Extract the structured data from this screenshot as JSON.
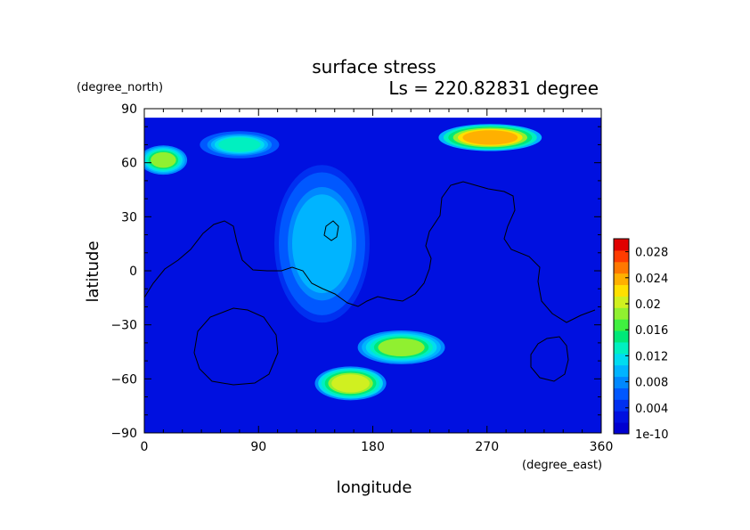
{
  "chart_data": {
    "type": "heatmap",
    "title": "surface stress",
    "subtitle": "Ls = 220.82831 degree",
    "xlabel": "longitude",
    "ylabel": "latitude",
    "x_unit": "(degree_east)",
    "y_unit": "(degree_north)",
    "xlim": [
      0,
      360
    ],
    "ylim": [
      -90,
      90
    ],
    "x_ticks": [
      "0",
      "90",
      "180",
      "270",
      "360"
    ],
    "y_ticks": [
      "90",
      "60",
      "30",
      "0",
      "−30",
      "−60",
      "−90"
    ],
    "x_tick_values": [
      0,
      90,
      180,
      270,
      360
    ],
    "y_tick_values": [
      90,
      60,
      30,
      0,
      -30,
      -60,
      -90
    ],
    "colorbar": {
      "labels": [
        "0.028",
        "0.024",
        "0.02",
        "0.016",
        "0.012",
        "0.008",
        "0.004",
        "1e-10"
      ],
      "values": [
        0.028,
        0.024,
        0.02,
        0.016,
        0.012,
        0.008,
        0.004,
        0
      ],
      "min": 0,
      "max": 0.03
    },
    "colors": [
      "#0000d0",
      "#0010e0",
      "#0030f0",
      "#0058ff",
      "#0088ff",
      "#00b4ff",
      "#00dcf0",
      "#00f0c0",
      "#00e878",
      "#40f040",
      "#90f030",
      "#d0f020",
      "#ffe000",
      "#ffb000",
      "#ff7800",
      "#ff3c00",
      "#e00000"
    ],
    "field_features": [
      {
        "region": "north-polar band 240-300E",
        "lon": [
          240,
          305
        ],
        "lat": [
          68,
          80
        ],
        "peak": 0.025
      },
      {
        "region": "north-west cap",
        "lon": [
          0,
          30
        ],
        "lat": [
          55,
          68
        ],
        "peak": 0.018
      },
      {
        "region": "northern band 60-90E",
        "lon": [
          50,
          100
        ],
        "lat": [
          64,
          76
        ],
        "peak": 0.013
      },
      {
        "region": "southern band 180-220E",
        "lon": [
          175,
          230
        ],
        "lat": [
          -50,
          -35
        ],
        "peak": 0.018
      },
      {
        "region": "southern band 150-190E",
        "lon": [
          140,
          185
        ],
        "lat": [
          -70,
          -55
        ],
        "peak": 0.021
      },
      {
        "region": "equatorial plume 120-160E",
        "lon": [
          110,
          170
        ],
        "lat": [
          -20,
          50
        ],
        "peak": 0.01
      }
    ],
    "grid": false,
    "legend_position": "right"
  }
}
